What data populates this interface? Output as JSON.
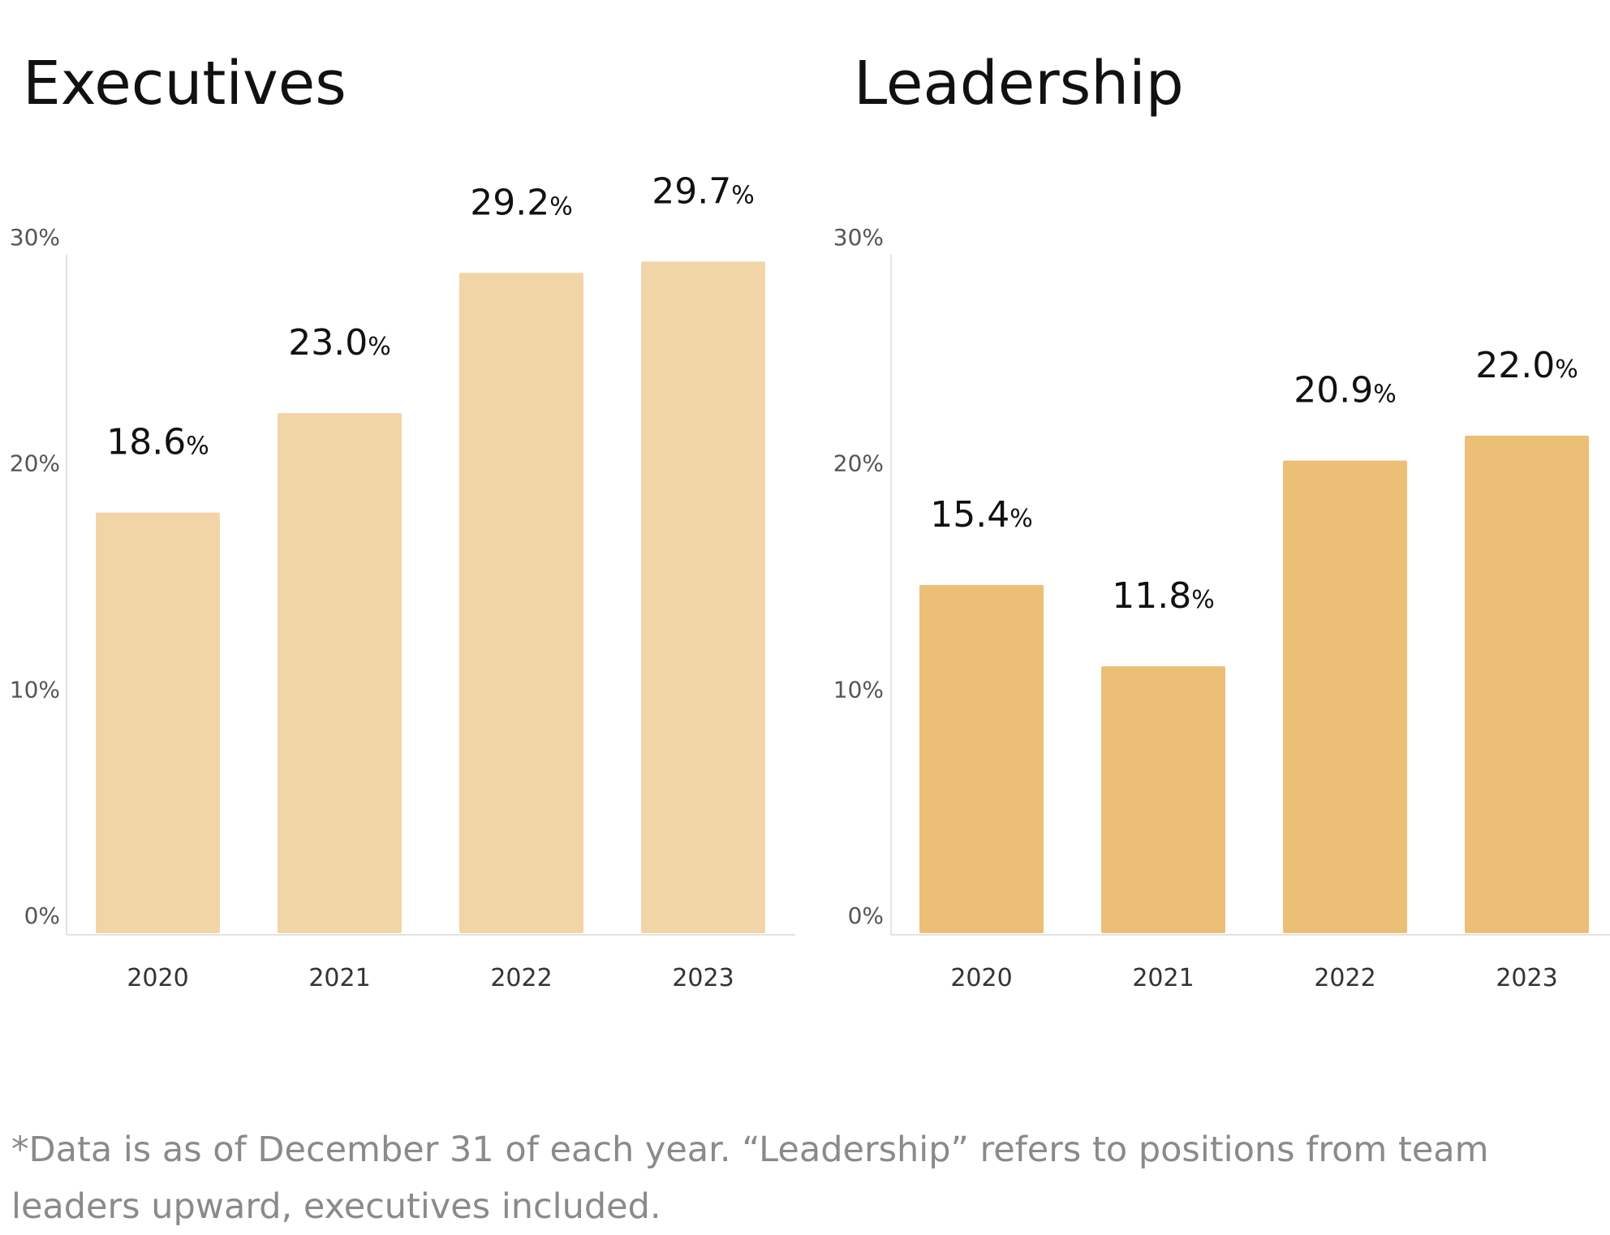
{
  "footnote": "*Data is as of December 31 of each year. “Leadership” refers to positions from team leaders upward, executives included.",
  "chart_data": [
    {
      "type": "bar",
      "title": "Executives",
      "categories": [
        "2020",
        "2021",
        "2022",
        "2023"
      ],
      "values": [
        18.6,
        23.0,
        29.2,
        29.7
      ],
      "value_labels": [
        "18.6",
        "23.0",
        "29.2",
        "29.7"
      ],
      "value_unit": "%",
      "yticks": [
        "0%",
        "10%",
        "20%",
        "30%"
      ],
      "ylim": [
        0,
        30
      ],
      "color": "#f1d5a6",
      "grid": false
    },
    {
      "type": "bar",
      "title": "Leadership",
      "categories": [
        "2020",
        "2021",
        "2022",
        "2023"
      ],
      "values": [
        15.4,
        11.8,
        20.9,
        22.0
      ],
      "value_labels": [
        "15.4",
        "11.8",
        "20.9",
        "22.0"
      ],
      "value_unit": "%",
      "yticks": [
        "0%",
        "10%",
        "20%",
        "30%"
      ],
      "ylim": [
        0,
        30
      ],
      "color": "#ecbf76",
      "grid": false
    }
  ]
}
